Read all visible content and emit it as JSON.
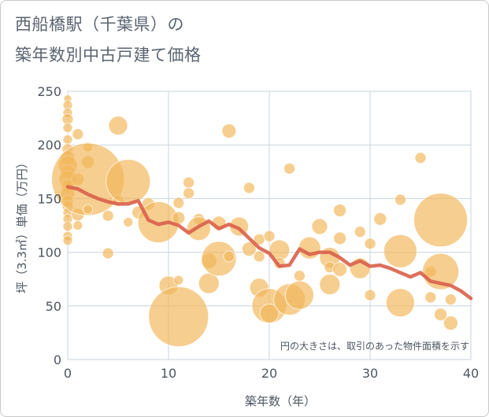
{
  "title_line1": "西船橋駅（千葉県）の",
  "title_line2": "築年数別中古戸建て価格",
  "chart_data": {
    "type": "scatter",
    "xlabel": "築年数（年）",
    "ylabel": "坪（3.3㎡）単価（万円）",
    "xlim": [
      0,
      40
    ],
    "ylim": [
      0,
      250
    ],
    "x_ticks": [
      0,
      10,
      20,
      30,
      40
    ],
    "y_ticks": [
      0,
      50,
      100,
      150,
      200,
      250
    ],
    "grid": true,
    "annotation": "円の大きさは、取引のあった物件面積を示す",
    "colors": {
      "bubble": "#f2b75a",
      "trend": "#d9604a",
      "grid": "#c9d3dd"
    },
    "bubbles": [
      {
        "x": 0,
        "y": 243,
        "s": 5
      },
      {
        "x": 0,
        "y": 237,
        "s": 6
      },
      {
        "x": 0,
        "y": 230,
        "s": 6
      },
      {
        "x": 0,
        "y": 224,
        "s": 7
      },
      {
        "x": 0,
        "y": 216,
        "s": 6
      },
      {
        "x": 0,
        "y": 205,
        "s": 6
      },
      {
        "x": 0,
        "y": 196,
        "s": 7
      },
      {
        "x": 0,
        "y": 188,
        "s": 9
      },
      {
        "x": 0,
        "y": 181,
        "s": 12
      },
      {
        "x": 0,
        "y": 175,
        "s": 9
      },
      {
        "x": 0,
        "y": 168,
        "s": 11
      },
      {
        "x": 0,
        "y": 162,
        "s": 8
      },
      {
        "x": 0,
        "y": 155,
        "s": 9
      },
      {
        "x": 0,
        "y": 148,
        "s": 7
      },
      {
        "x": 0,
        "y": 143,
        "s": 7
      },
      {
        "x": 0,
        "y": 137,
        "s": 6
      },
      {
        "x": 0,
        "y": 131,
        "s": 6
      },
      {
        "x": 0,
        "y": 124,
        "s": 6
      },
      {
        "x": 0,
        "y": 115,
        "s": 6
      },
      {
        "x": 0,
        "y": 111,
        "s": 6
      },
      {
        "x": 1,
        "y": 210,
        "s": 7
      },
      {
        "x": 1,
        "y": 168,
        "s": 8
      },
      {
        "x": 1,
        "y": 135,
        "s": 8
      },
      {
        "x": 1,
        "y": 125,
        "s": 6
      },
      {
        "x": 2,
        "y": 198,
        "s": 6
      },
      {
        "x": 2,
        "y": 184,
        "s": 8
      },
      {
        "x": 2,
        "y": 168,
        "s": 46
      },
      {
        "x": 2,
        "y": 140,
        "s": 6
      },
      {
        "x": 4,
        "y": 134,
        "s": 7
      },
      {
        "x": 4,
        "y": 99,
        "s": 7
      },
      {
        "x": 5,
        "y": 218,
        "s": 12
      },
      {
        "x": 5,
        "y": 148,
        "s": 7
      },
      {
        "x": 6,
        "y": 166,
        "s": 28
      },
      {
        "x": 6,
        "y": 128,
        "s": 6
      },
      {
        "x": 7,
        "y": 137,
        "s": 8
      },
      {
        "x": 8,
        "y": 145,
        "s": 8
      },
      {
        "x": 9,
        "y": 128,
        "s": 26
      },
      {
        "x": 10,
        "y": 69,
        "s": 12
      },
      {
        "x": 11,
        "y": 146,
        "s": 7
      },
      {
        "x": 11,
        "y": 132,
        "s": 8
      },
      {
        "x": 11,
        "y": 74,
        "s": 6
      },
      {
        "x": 11,
        "y": 40,
        "s": 38
      },
      {
        "x": 12,
        "y": 165,
        "s": 7
      },
      {
        "x": 12,
        "y": 155,
        "s": 7
      },
      {
        "x": 13,
        "y": 131,
        "s": 7
      },
      {
        "x": 13,
        "y": 122,
        "s": 15
      },
      {
        "x": 14,
        "y": 92,
        "s": 10
      },
      {
        "x": 14,
        "y": 71,
        "s": 13
      },
      {
        "x": 15,
        "y": 127,
        "s": 9
      },
      {
        "x": 15,
        "y": 94,
        "s": 22
      },
      {
        "x": 16,
        "y": 213,
        "s": 9
      },
      {
        "x": 16,
        "y": 96,
        "s": 7
      },
      {
        "x": 17,
        "y": 124,
        "s": 12
      },
      {
        "x": 18,
        "y": 160,
        "s": 7
      },
      {
        "x": 18,
        "y": 103,
        "s": 9
      },
      {
        "x": 19,
        "y": 112,
        "s": 7
      },
      {
        "x": 19,
        "y": 96,
        "s": 7
      },
      {
        "x": 19,
        "y": 67,
        "s": 12
      },
      {
        "x": 20,
        "y": 115,
        "s": 7
      },
      {
        "x": 20,
        "y": 50,
        "s": 22
      },
      {
        "x": 20,
        "y": 43,
        "s": 12
      },
      {
        "x": 21,
        "y": 102,
        "s": 13
      },
      {
        "x": 21,
        "y": 90,
        "s": 7
      },
      {
        "x": 22,
        "y": 178,
        "s": 7
      },
      {
        "x": 22,
        "y": 56,
        "s": 20
      },
      {
        "x": 23,
        "y": 78,
        "s": 7
      },
      {
        "x": 23,
        "y": 60,
        "s": 18
      },
      {
        "x": 24,
        "y": 104,
        "s": 14
      },
      {
        "x": 25,
        "y": 124,
        "s": 10
      },
      {
        "x": 26,
        "y": 95,
        "s": 13
      },
      {
        "x": 26,
        "y": 86,
        "s": 7
      },
      {
        "x": 26,
        "y": 70,
        "s": 13
      },
      {
        "x": 27,
        "y": 139,
        "s": 8
      },
      {
        "x": 27,
        "y": 113,
        "s": 8
      },
      {
        "x": 27,
        "y": 84,
        "s": 9
      },
      {
        "x": 29,
        "y": 119,
        "s": 7
      },
      {
        "x": 29,
        "y": 85,
        "s": 13
      },
      {
        "x": 30,
        "y": 108,
        "s": 7
      },
      {
        "x": 30,
        "y": 60,
        "s": 7
      },
      {
        "x": 31,
        "y": 131,
        "s": 8
      },
      {
        "x": 33,
        "y": 149,
        "s": 7
      },
      {
        "x": 33,
        "y": 101,
        "s": 21
      },
      {
        "x": 33,
        "y": 53,
        "s": 18
      },
      {
        "x": 35,
        "y": 188,
        "s": 7
      },
      {
        "x": 36,
        "y": 82,
        "s": 7
      },
      {
        "x": 36,
        "y": 58,
        "s": 7
      },
      {
        "x": 37,
        "y": 130,
        "s": 34
      },
      {
        "x": 37,
        "y": 82,
        "s": 23
      },
      {
        "x": 37,
        "y": 42,
        "s": 8
      },
      {
        "x": 38,
        "y": 56,
        "s": 7
      },
      {
        "x": 38,
        "y": 34,
        "s": 9
      }
    ],
    "trend": {
      "x": [
        0,
        1,
        2,
        3,
        4,
        5,
        6,
        7,
        8,
        9,
        10,
        11,
        12,
        13,
        14,
        15,
        16,
        17,
        18,
        19,
        20,
        21,
        22,
        23,
        24,
        25,
        26,
        27,
        28,
        29,
        30,
        31,
        32,
        33,
        34,
        35,
        36,
        37,
        38,
        39,
        40
      ],
      "y": [
        161,
        159,
        154,
        150,
        147,
        145,
        145,
        148,
        130,
        126,
        128,
        125,
        118,
        124,
        129,
        122,
        126,
        122,
        113,
        104,
        99,
        87,
        88,
        103,
        98,
        100,
        100,
        95,
        88,
        92,
        87,
        88,
        85,
        81,
        77,
        81,
        73,
        71,
        69,
        64,
        57
      ]
    }
  }
}
